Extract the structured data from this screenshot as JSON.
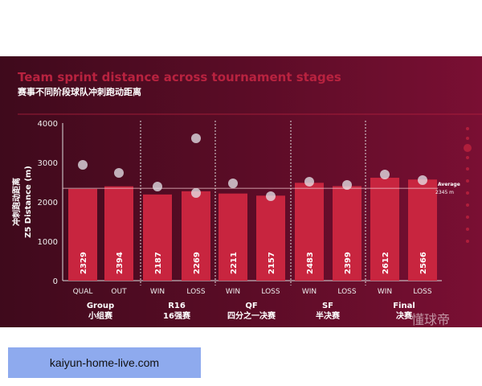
{
  "chart_data": {
    "type": "bar",
    "title": "Team sprint distance across tournament stages",
    "subtitle": "赛事不同阶段球队冲刺跑动距离",
    "ylabel_cn": "冲刺跑动距离",
    "ylabel": "Z5 Distance (m)",
    "ylim": [
      0,
      4000
    ],
    "yticks": [
      0,
      1000,
      2000,
      3000,
      4000
    ],
    "categories": [
      "QUAL",
      "OUT",
      "WIN",
      "LOSS",
      "WIN",
      "LOSS",
      "WIN",
      "LOSS",
      "WIN",
      "LOSS"
    ],
    "values": [
      2329,
      2394,
      2187,
      2269,
      2211,
      2157,
      2483,
      2399,
      2612,
      2566
    ],
    "groups": [
      {
        "name": "Group",
        "name_cn": "小组赛"
      },
      {
        "name": "R16",
        "name_cn": "16强赛"
      },
      {
        "name": "QF",
        "name_cn": "四分之一决赛"
      },
      {
        "name": "SF",
        "name_cn": "半决赛"
      },
      {
        "name": "Final",
        "name_cn": "决赛"
      }
    ],
    "average": {
      "label": "Average",
      "value_text": "2345 m",
      "value": 2345
    },
    "colors": {
      "bar": "#c8253f",
      "text": "#ffffff",
      "title": "#b8223f"
    }
  },
  "watermark": "懂球帝",
  "site": "kaiyun-home-live.com"
}
